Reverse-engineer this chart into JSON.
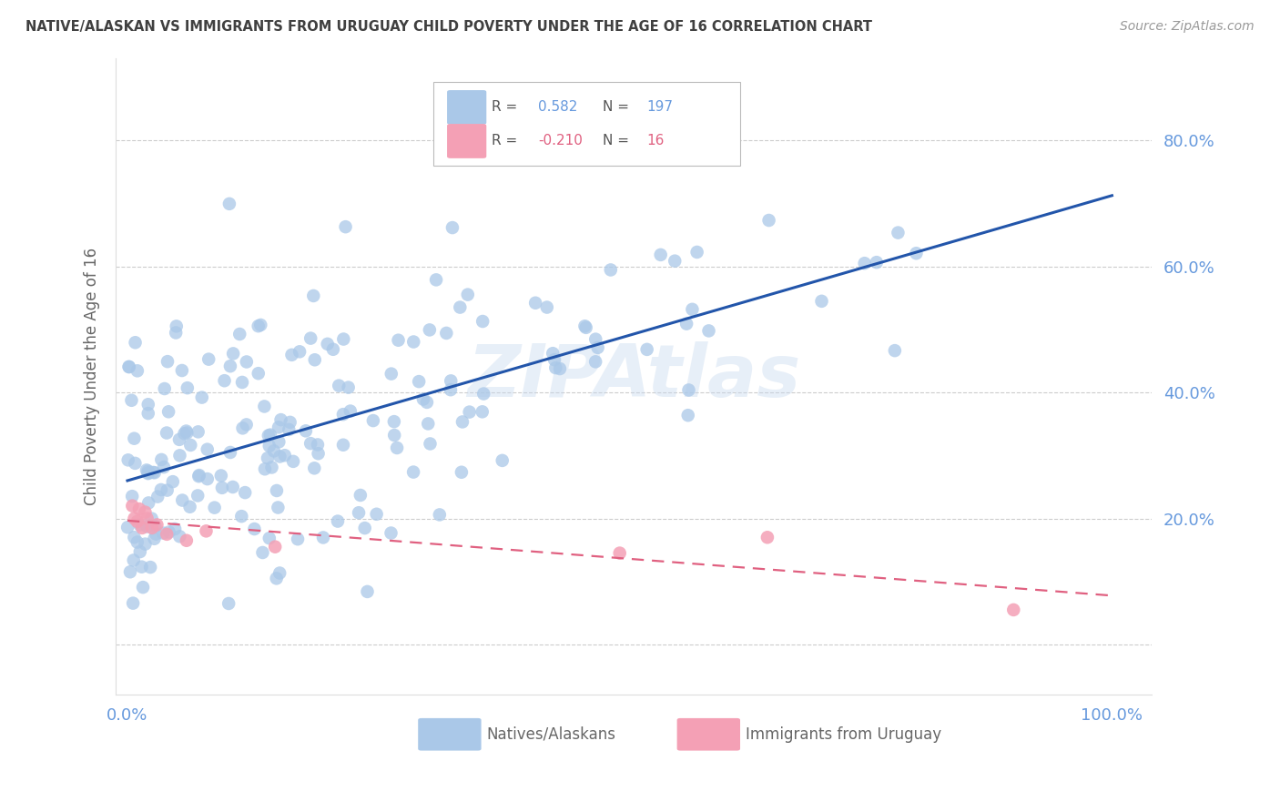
{
  "title": "NATIVE/ALASKAN VS IMMIGRANTS FROM URUGUAY CHILD POVERTY UNDER THE AGE OF 16 CORRELATION CHART",
  "source": "Source: ZipAtlas.com",
  "ylabel": "Child Poverty Under the Age of 16",
  "watermark": "ZIPAtlas",
  "native_color": "#aac8e8",
  "native_line_color": "#2255aa",
  "uruguay_color": "#f4a0b5",
  "uruguay_line_color": "#e06080",
  "r_native": 0.582,
  "n_native": 197,
  "r_uruguay": -0.21,
  "n_uruguay": 16,
  "bg_color": "#ffffff",
  "grid_color": "#cccccc",
  "title_color": "#404040",
  "axis_color": "#5588cc",
  "legend_label_1": "Natives/Alaskans",
  "legend_label_2": "Immigrants from Uruguay",
  "axis_label_color": "#6699dd"
}
